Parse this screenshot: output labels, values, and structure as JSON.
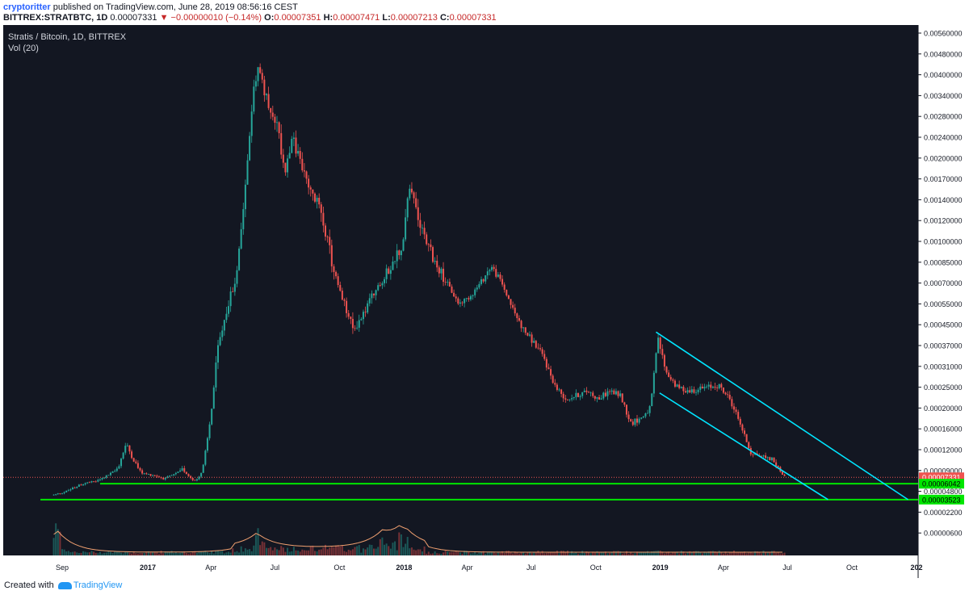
{
  "header": {
    "author": "cryptoritter",
    "published": "published on TradingView.com, June 28, 2019 08:56:16 CEST",
    "symbol": "BITTREX:STRATBTC, 1D",
    "last": "0.00007331",
    "change": "▼ −0.00000010 (−0.14%)",
    "o_label": "O:",
    "o_value": "0.00007351",
    "h_label": "H:",
    "h_value": "0.00007471",
    "l_label": "L:",
    "l_value": "0.00007213",
    "c_label": "C:",
    "c_value": "0.00007331"
  },
  "legend": {
    "title": "Stratis / Bitcoin, 1D, BITTREX",
    "indicator": "Vol (20)"
  },
  "footer": {
    "created_with": "Created with",
    "brand": "TradingView"
  },
  "colors": {
    "background": "#131722",
    "up": "#26a69a",
    "down": "#ef5350",
    "channel": "#00e5ff",
    "support": "#00e600",
    "price_line": "#ef5350",
    "volume_ma": "#f0a070"
  },
  "chart_data": {
    "type": "candlestick",
    "title": "Stratis / Bitcoin, 1D, BITTREX",
    "y_scale": "log",
    "y_ticks": [
      "0.00560000",
      "0.00480000",
      "0.00400000",
      "0.00340000",
      "0.00280000",
      "0.00240000",
      "0.00200000",
      "0.00170000",
      "0.00140000",
      "0.00120000",
      "0.00100000",
      "0.00085000",
      "0.00070000",
      "0.00055000",
      "0.00045000",
      "0.00037000",
      "0.00031000",
      "0.00025000",
      "0.00020000",
      "0.00016000",
      "0.00012000",
      "0.00009000",
      "0.00004800",
      "0.00002200",
      "0.00000600"
    ],
    "x_ticks": [
      "Sep",
      "2017",
      "Apr",
      "Jul",
      "Oct",
      "2018",
      "Apr",
      "Jul",
      "Oct",
      "2019",
      "Apr",
      "Jul",
      "Oct",
      "202"
    ],
    "x_tick_dates": [
      "2016-09-01",
      "2017-01-01",
      "2017-04-01",
      "2017-07-01",
      "2017-10-01",
      "2018-01-01",
      "2018-04-01",
      "2018-07-01",
      "2018-10-01",
      "2019-01-01",
      "2019-04-01",
      "2019-07-01",
      "2019-10-01",
      "2020-01-01"
    ],
    "price_path": [
      [
        "2016-08-20",
        4.2e-05
      ],
      [
        "2016-09-05",
        4.7e-05
      ],
      [
        "2016-09-20",
        5.5e-05
      ],
      [
        "2016-10-05",
        6.2e-05
      ],
      [
        "2016-10-20",
        6.5e-05
      ],
      [
        "2016-11-05",
        7.8e-05
      ],
      [
        "2016-11-20",
        9.5e-05
      ],
      [
        "2016-12-01",
        0.00013
      ],
      [
        "2016-12-10",
        0.000108
      ],
      [
        "2016-12-25",
        8.2e-05
      ],
      [
        "2017-01-10",
        7.8e-05
      ],
      [
        "2017-01-25",
        7e-05
      ],
      [
        "2017-02-10",
        8.2e-05
      ],
      [
        "2017-02-20",
        9.2e-05
      ],
      [
        "2017-03-01",
        7.5e-05
      ],
      [
        "2017-03-10",
        6.5e-05
      ],
      [
        "2017-03-20",
        9e-05
      ],
      [
        "2017-04-01",
        0.00019
      ],
      [
        "2017-04-10",
        0.00035
      ],
      [
        "2017-04-25",
        0.00055
      ],
      [
        "2017-05-05",
        0.0007
      ],
      [
        "2017-05-15",
        0.0012
      ],
      [
        "2017-05-25",
        0.0023
      ],
      [
        "2017-06-01",
        0.0035
      ],
      [
        "2017-06-08",
        0.0044
      ],
      [
        "2017-06-15",
        0.0035
      ],
      [
        "2017-06-25",
        0.003
      ],
      [
        "2017-07-05",
        0.0026
      ],
      [
        "2017-07-15",
        0.0018
      ],
      [
        "2017-07-25",
        0.0024
      ],
      [
        "2017-08-05",
        0.002
      ],
      [
        "2017-08-20",
        0.0015
      ],
      [
        "2017-09-05",
        0.0013
      ],
      [
        "2017-09-20",
        0.00085
      ],
      [
        "2017-10-05",
        0.00058
      ],
      [
        "2017-10-20",
        0.00043
      ],
      [
        "2017-11-05",
        0.0005
      ],
      [
        "2017-11-20",
        0.00065
      ],
      [
        "2017-12-05",
        0.00075
      ],
      [
        "2017-12-20",
        0.0009
      ],
      [
        "2017-12-31",
        0.001
      ],
      [
        "2018-01-08",
        0.0016
      ],
      [
        "2018-01-20",
        0.00125
      ],
      [
        "2018-02-05",
        0.00095
      ],
      [
        "2018-02-20",
        0.0008
      ],
      [
        "2018-03-05",
        0.00068
      ],
      [
        "2018-03-20",
        0.00055
      ],
      [
        "2018-04-05",
        0.0006
      ],
      [
        "2018-04-20",
        0.0007
      ],
      [
        "2018-05-05",
        0.00082
      ],
      [
        "2018-05-20",
        0.0007
      ],
      [
        "2018-06-05",
        0.00052
      ],
      [
        "2018-06-20",
        0.00043
      ],
      [
        "2018-07-05",
        0.00038
      ],
      [
        "2018-07-20",
        0.00033
      ],
      [
        "2018-08-05",
        0.00025
      ],
      [
        "2018-08-20",
        0.00022
      ],
      [
        "2018-09-05",
        0.00023
      ],
      [
        "2018-09-20",
        0.00024
      ],
      [
        "2018-10-05",
        0.00022
      ],
      [
        "2018-10-20",
        0.00024
      ],
      [
        "2018-11-05",
        0.00023
      ],
      [
        "2018-11-20",
        0.00017
      ],
      [
        "2018-12-05",
        0.00018
      ],
      [
        "2018-12-18",
        0.0002
      ],
      [
        "2018-12-28",
        0.0004
      ],
      [
        "2019-01-10",
        0.00029
      ],
      [
        "2019-01-25",
        0.00025
      ],
      [
        "2019-02-10",
        0.00024
      ],
      [
        "2019-02-25",
        0.000245
      ],
      [
        "2019-03-10",
        0.00025
      ],
      [
        "2019-03-25",
        0.000255
      ],
      [
        "2019-04-10",
        0.00022
      ],
      [
        "2019-04-25",
        0.00017
      ],
      [
        "2019-05-10",
        0.000115
      ],
      [
        "2019-05-25",
        0.00011
      ],
      [
        "2019-06-10",
        0.000105
      ],
      [
        "2019-06-20",
        9e-05
      ],
      [
        "2019-06-28",
        7.33e-05
      ]
    ],
    "volume_spikes": [
      [
        "2016-08-25",
        0.9
      ],
      [
        "2017-06-05",
        0.6
      ],
      [
        "2017-12-01",
        0.45
      ],
      [
        "2017-12-25",
        0.5
      ],
      [
        "2018-01-05",
        0.35
      ]
    ],
    "channel_upper": [
      [
        "2018-12-26",
        0.00042
      ],
      [
        "2019-12-20",
        3.52e-05
      ]
    ],
    "channel_lower": [
      [
        "2018-12-31",
        0.000235
      ],
      [
        "2019-08-28",
        3.52e-05
      ]
    ],
    "support_lines": [
      {
        "value": 6.042e-05,
        "from": "2016-10-25",
        "label": "0.00006042"
      },
      {
        "value": 3.523e-05,
        "from": "2016-08-01",
        "label": "0.00003523"
      }
    ],
    "last_price": {
      "value": 7.331e-05,
      "label": "0.00007331"
    }
  }
}
